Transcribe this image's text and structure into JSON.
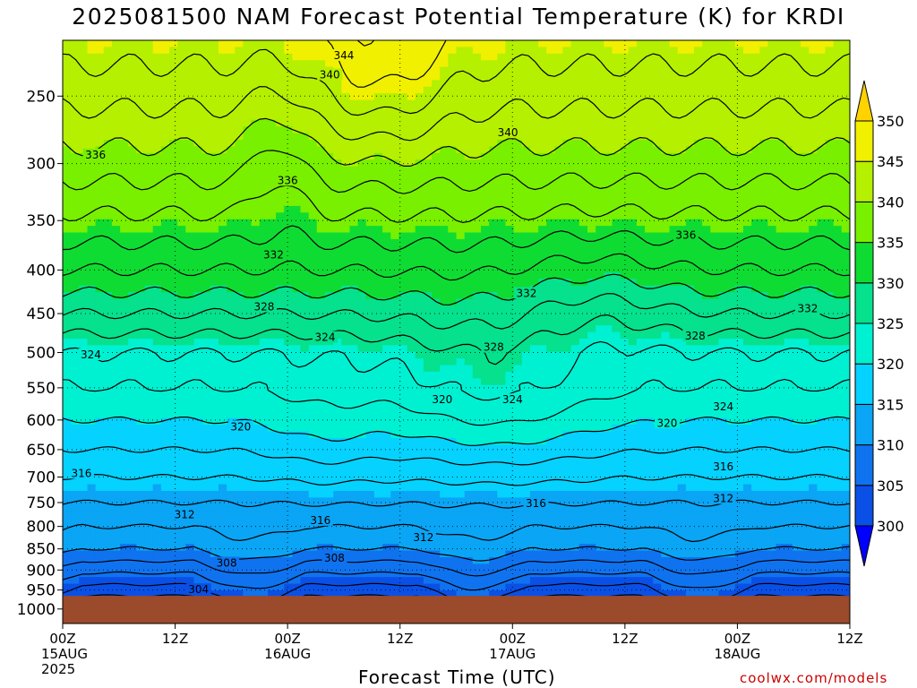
{
  "chart_data": {
    "type": "heatmap",
    "title": "2025081500 NAM Forecast Potential Temperature (K) for KRDI",
    "xlabel": "Forecast Time (UTC)",
    "ylabel": "",
    "y_axis": {
      "scale": "log",
      "reversed": true,
      "units": "hPa",
      "range": [
        1040,
        215
      ],
      "ticks": [
        250,
        300,
        350,
        400,
        450,
        500,
        550,
        600,
        650,
        700,
        750,
        800,
        850,
        900,
        950,
        1000
      ]
    },
    "x_axis": {
      "range": [
        "2025-08-15T00Z",
        "2025-08-18T12Z"
      ],
      "ticks": [
        {
          "hour": 0,
          "line1": "00Z",
          "line2": "15AUG",
          "line3": "2025"
        },
        {
          "hour": 12,
          "line1": "12Z",
          "line2": "",
          "line3": ""
        },
        {
          "hour": 24,
          "line1": "00Z",
          "line2": "16AUG",
          "line3": ""
        },
        {
          "hour": 36,
          "line1": "12Z",
          "line2": "",
          "line3": ""
        },
        {
          "hour": 48,
          "line1": "00Z",
          "line2": "17AUG",
          "line3": ""
        },
        {
          "hour": 60,
          "line1": "12Z",
          "line2": "",
          "line3": ""
        },
        {
          "hour": 72,
          "line1": "00Z",
          "line2": "18AUG",
          "line3": ""
        },
        {
          "hour": 84,
          "line1": "12Z",
          "line2": "",
          "line3": ""
        }
      ]
    },
    "grid": true,
    "ground_below_hPa": 965,
    "ground_color": "#9b4a2b",
    "colorbar": {
      "levels": [
        300,
        305,
        310,
        315,
        320,
        325,
        330,
        335,
        340,
        345,
        350
      ],
      "labels": [
        "300",
        "305",
        "310",
        "315",
        "320",
        "325",
        "330",
        "335",
        "340",
        "345",
        "350"
      ],
      "colors": [
        "#0000ff",
        "#0a50e6",
        "#0f73f0",
        "#0aa5f5",
        "#05d2ff",
        "#00f0d2",
        "#05e18c",
        "#0fdc32",
        "#78f000",
        "#b4f000",
        "#f0f000",
        "#ffd200"
      ],
      "placement": "right"
    },
    "contour_interval": 2,
    "contour_labels": [
      {
        "value": "344",
        "hour": 30.0,
        "hPa": 224
      },
      {
        "value": "340",
        "hour": 28.5,
        "hPa": 236
      },
      {
        "value": "340",
        "hour": 47.5,
        "hPa": 276
      },
      {
        "value": "336",
        "hour": 3.5,
        "hPa": 293
      },
      {
        "value": "336",
        "hour": 24.0,
        "hPa": 314
      },
      {
        "value": "336",
        "hour": 66.5,
        "hPa": 364
      },
      {
        "value": "332",
        "hour": 22.5,
        "hPa": 384
      },
      {
        "value": "332",
        "hour": 49.5,
        "hPa": 426
      },
      {
        "value": "332",
        "hour": 79.5,
        "hPa": 444
      },
      {
        "value": "328",
        "hour": 21.5,
        "hPa": 442
      },
      {
        "value": "328",
        "hour": 46.0,
        "hPa": 493
      },
      {
        "value": "328",
        "hour": 67.5,
        "hPa": 478
      },
      {
        "value": "324",
        "hour": 3.0,
        "hPa": 503
      },
      {
        "value": "324",
        "hour": 28.0,
        "hPa": 480
      },
      {
        "value": "324",
        "hour": 48.0,
        "hPa": 568
      },
      {
        "value": "324",
        "hour": 70.5,
        "hPa": 579
      },
      {
        "value": "320",
        "hour": 19.0,
        "hPa": 611
      },
      {
        "value": "320",
        "hour": 40.5,
        "hPa": 568
      },
      {
        "value": "320",
        "hour": 64.5,
        "hPa": 605
      },
      {
        "value": "316",
        "hour": 2.0,
        "hPa": 693
      },
      {
        "value": "316",
        "hour": 27.5,
        "hPa": 787
      },
      {
        "value": "316",
        "hour": 50.5,
        "hPa": 752
      },
      {
        "value": "316",
        "hour": 70.5,
        "hPa": 681
      },
      {
        "value": "312",
        "hour": 13.0,
        "hPa": 775
      },
      {
        "value": "312",
        "hour": 38.5,
        "hPa": 824
      },
      {
        "value": "312",
        "hour": 70.5,
        "hPa": 742
      },
      {
        "value": "308",
        "hour": 17.5,
        "hPa": 883
      },
      {
        "value": "308",
        "hour": 29.0,
        "hPa": 872
      },
      {
        "value": "304",
        "hour": 14.5,
        "hPa": 949
      }
    ]
  },
  "credit": "coolwx.com/models"
}
